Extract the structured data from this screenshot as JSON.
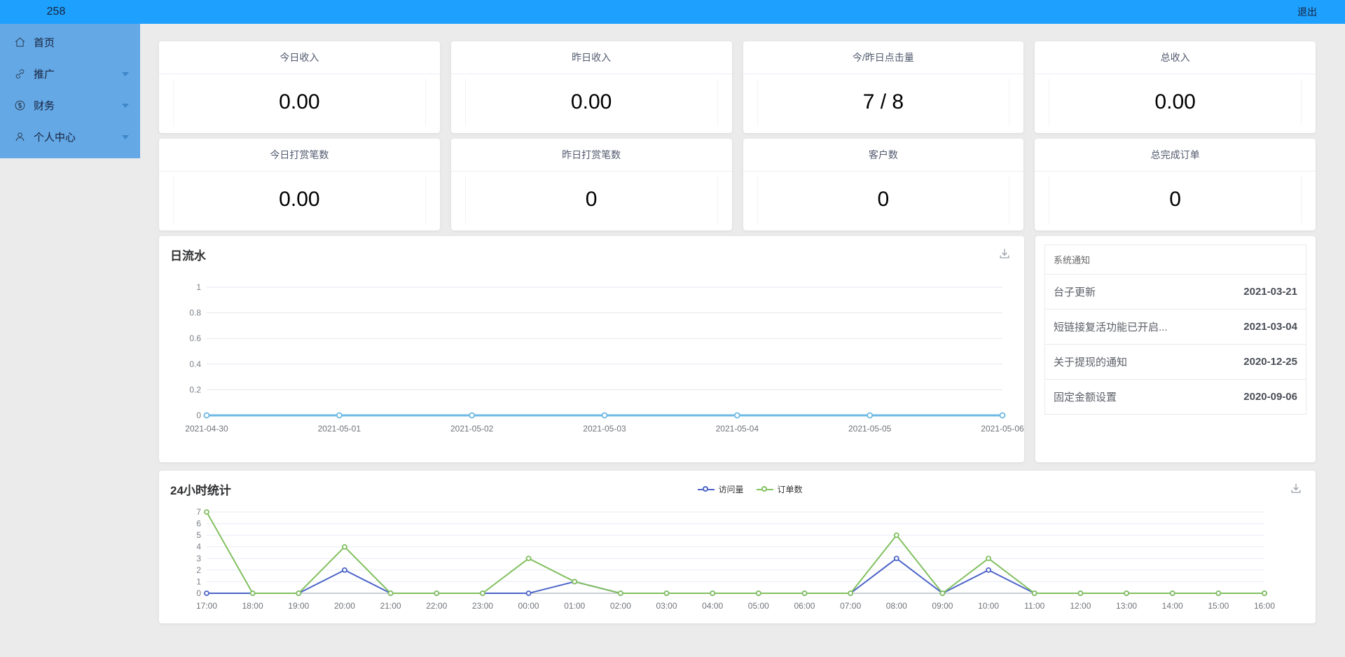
{
  "topbar": {
    "brand": "258",
    "logout_label": "退出",
    "bg_color": "#1ea0ff"
  },
  "sidebar": {
    "bg_color": "#64a8e6",
    "items": [
      {
        "label": "首页",
        "icon": "home-icon",
        "has_submenu": false
      },
      {
        "label": "推广",
        "icon": "link-icon",
        "has_submenu": true
      },
      {
        "label": "财务",
        "icon": "finance-icon",
        "has_submenu": true
      },
      {
        "label": "个人中心",
        "icon": "user-icon",
        "has_submenu": true
      }
    ]
  },
  "stats": {
    "cards": [
      {
        "label": "今日收入",
        "value": "0.00"
      },
      {
        "label": "昨日收入",
        "value": "0.00"
      },
      {
        "label": "今/昨日点击量",
        "value": "7 / 8"
      },
      {
        "label": "总收入",
        "value": "0.00"
      },
      {
        "label": "今日打赏笔数",
        "value": "0.00"
      },
      {
        "label": "昨日打赏笔数",
        "value": "0"
      },
      {
        "label": "客户数",
        "value": "0"
      },
      {
        "label": "总完成订单",
        "value": "0"
      }
    ]
  },
  "notices": {
    "title": "系统通知",
    "items": [
      {
        "title": "台子更新",
        "date": "2021-03-21"
      },
      {
        "title": "短链接复活功能已开启...",
        "date": "2021-03-04"
      },
      {
        "title": "关于提现的通知",
        "date": "2020-12-25"
      },
      {
        "title": "固定金额设置",
        "date": "2020-09-06"
      }
    ]
  },
  "chart_data": [
    {
      "id": "daily",
      "type": "line",
      "title": "日流水",
      "x": [
        "2021-04-30",
        "2021-05-01",
        "2021-05-02",
        "2021-05-03",
        "2021-05-04",
        "2021-05-05",
        "2021-05-06"
      ],
      "series": [
        {
          "name": "日流水",
          "color": "#6cb8e4",
          "values": [
            0,
            0,
            0,
            0,
            0,
            0,
            0
          ]
        }
      ],
      "ylim": [
        0,
        1
      ],
      "yticks": [
        0,
        0.2,
        0.4,
        0.6,
        0.8,
        1
      ],
      "grid": true,
      "legend": "none"
    },
    {
      "id": "hourly",
      "type": "line",
      "title": "24小时统计",
      "x": [
        "17:00",
        "18:00",
        "19:00",
        "20:00",
        "21:00",
        "22:00",
        "23:00",
        "00:00",
        "01:00",
        "02:00",
        "03:00",
        "04:00",
        "05:00",
        "06:00",
        "07:00",
        "08:00",
        "09:00",
        "10:00",
        "11:00",
        "12:00",
        "13:00",
        "14:00",
        "15:00",
        "16:00"
      ],
      "series": [
        {
          "name": "访问量",
          "color": "#4c64c8",
          "values": [
            0,
            0,
            0,
            2,
            0,
            0,
            0,
            0,
            1,
            0,
            0,
            0,
            0,
            0,
            0,
            3,
            0,
            2,
            0,
            0,
            0,
            0,
            0,
            0
          ]
        },
        {
          "name": "订单数",
          "color": "#82c060",
          "values": [
            7,
            0,
            0,
            4,
            0,
            0,
            0,
            3,
            1,
            0,
            0,
            0,
            0,
            0,
            0,
            5,
            0,
            3,
            0,
            0,
            0,
            0,
            0,
            0
          ]
        }
      ],
      "ylim": [
        0,
        7
      ],
      "yticks": [
        0,
        1,
        2,
        3,
        4,
        5,
        6,
        7
      ],
      "grid": true,
      "legend": "top-center"
    }
  ]
}
